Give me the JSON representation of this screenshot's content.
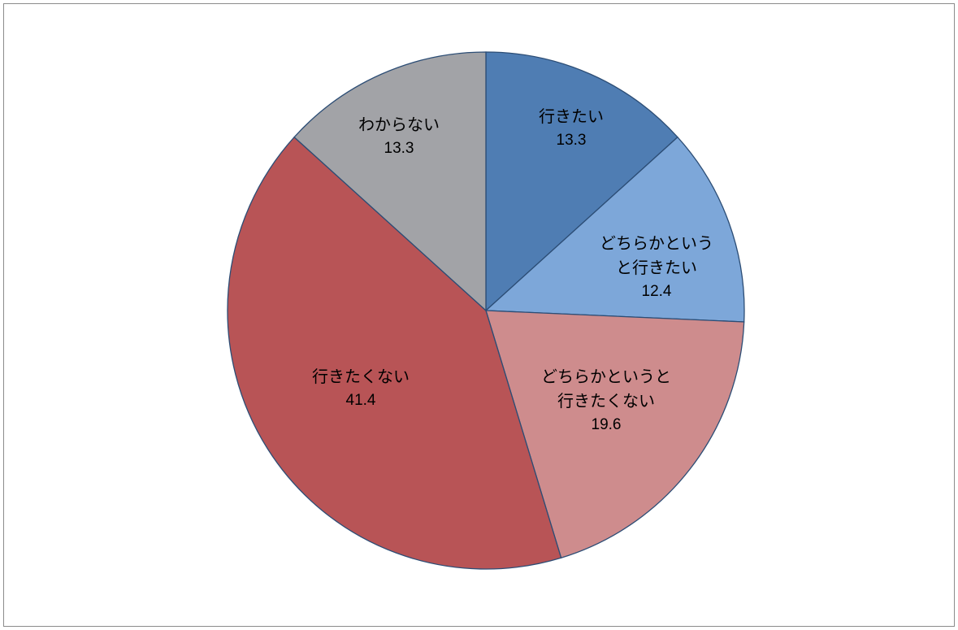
{
  "chart_data": {
    "type": "pie",
    "start_angle": "12 o'clock",
    "direction": "clockwise",
    "slices": [
      {
        "label_lines": [
          "行きたい"
        ],
        "value": 13.3,
        "color": "#4f7db3"
      },
      {
        "label_lines": [
          "どちらかというと",
          "行きたい"
        ],
        "display_lines": [
          "どちらかという",
          "と行きたい"
        ],
        "value": 12.4,
        "color": "#7da7d9"
      },
      {
        "label_lines": [
          "どちらかというと",
          "行きたくない"
        ],
        "display_lines": [
          "どちらかというと",
          "行きたくない"
        ],
        "value": 19.6,
        "color": "#ce8c8d"
      },
      {
        "label_lines": [
          "行きたくない"
        ],
        "value": 41.4,
        "color": "#b85456"
      },
      {
        "label_lines": [
          "わからない"
        ],
        "value": 13.3,
        "color": "#a2a3a7"
      }
    ],
    "border_color": "#2c4d75",
    "grid": false,
    "legend": "none"
  }
}
